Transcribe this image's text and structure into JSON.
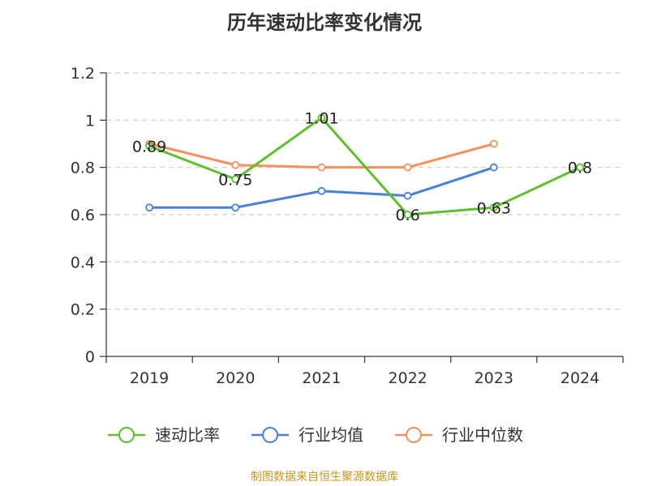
{
  "chart_data": {
    "type": "line",
    "title": "历年速动比率变化情况",
    "categories": [
      "2019",
      "2020",
      "2021",
      "2022",
      "2023",
      "2024"
    ],
    "ylim": [
      0,
      1.2
    ],
    "yticks": [
      "0",
      "0.2",
      "0.4",
      "0.6",
      "0.8",
      "1",
      "1.2"
    ],
    "grid": true,
    "legend_position": "bottom",
    "series": [
      {
        "name": "速动比率",
        "color": "#5cc12a",
        "values": [
          0.89,
          0.75,
          1.01,
          0.6,
          0.63,
          0.8
        ],
        "labels": [
          "0.89",
          "0.75",
          "1.01",
          "0.6",
          "0.63",
          "0.8"
        ]
      },
      {
        "name": "行业均值",
        "color": "#4a7fdb",
        "values": [
          0.63,
          0.63,
          0.7,
          0.68,
          0.8,
          null
        ]
      },
      {
        "name": "行业中位数",
        "color": "#f5915a",
        "values": [
          0.9,
          0.81,
          0.8,
          0.8,
          0.9,
          null
        ]
      }
    ]
  },
  "source": "制图数据来自恒生聚源数据库"
}
